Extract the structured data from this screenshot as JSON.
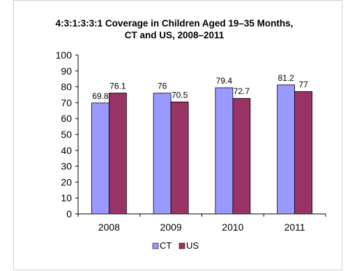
{
  "chart_data": {
    "type": "bar",
    "title": "4:3:1:3:3:1  Coverage in Children Aged 19–35 Months, CT and US, 2008–2011",
    "title_lines": [
      "4:3:1:3:3:1  Coverage in Children Aged 19–35 Months,",
      "CT and US, 2008–2011"
    ],
    "xlabel": "",
    "ylabel": "",
    "categories": [
      "2008",
      "2009",
      "2010",
      "2011"
    ],
    "series": [
      {
        "name": "CT",
        "values": [
          69.8,
          76,
          79.4,
          81.2
        ],
        "labels": [
          "69.8",
          "76",
          "79.4",
          "81.2"
        ],
        "color": "#9999ff"
      },
      {
        "name": "US",
        "values": [
          76.1,
          70.5,
          72.7,
          77
        ],
        "labels": [
          "76.1",
          "70.5",
          "72.7",
          "77"
        ],
        "color": "#993366"
      }
    ],
    "ylim": [
      0,
      100
    ],
    "yticks": [
      0,
      10,
      20,
      30,
      40,
      50,
      60,
      70,
      80,
      90,
      100
    ],
    "grid": false,
    "legend": "bottom-center",
    "background": "#ffffff",
    "border_color": "#cfcfcf"
  }
}
